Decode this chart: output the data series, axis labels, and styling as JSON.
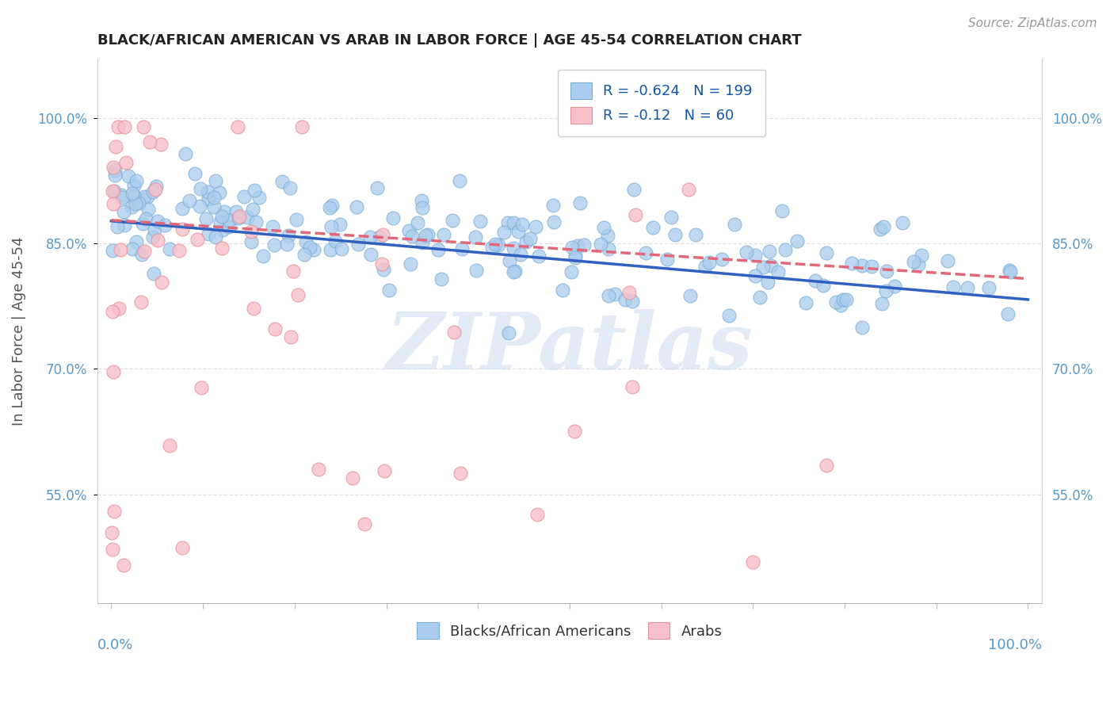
{
  "title": "BLACK/AFRICAN AMERICAN VS ARAB IN LABOR FORCE | AGE 45-54 CORRELATION CHART",
  "source": "Source: ZipAtlas.com",
  "ylabel": "In Labor Force | Age 45-54",
  "xlim": [
    -0.015,
    1.015
  ],
  "ylim": [
    0.42,
    1.07
  ],
  "ytick_values": [
    0.55,
    0.7,
    0.85,
    1.0
  ],
  "ytick_labels": [
    "55.0%",
    "70.0%",
    "85.0%",
    "100.0%"
  ],
  "blue_marker_color": "#aaccee",
  "blue_edge_color": "#7aadd4",
  "pink_marker_color": "#f8c0c8",
  "pink_edge_color": "#e89098",
  "trend_blue_color": "#3060c0",
  "trend_pink_color": "#e06878",
  "watermark_text": "ZIPatlas",
  "watermark_color": "#ccddef",
  "bg_color": "#ffffff",
  "grid_color": "#e0e0e0",
  "title_color": "#222222",
  "axis_tick_color": "#5599cc",
  "blue_label": "Blacks/African Americans",
  "pink_label": "Arabs",
  "R_blue": -0.624,
  "N_blue": 199,
  "R_pink": -0.12,
  "N_pink": 60,
  "blue_trend_y0": 0.877,
  "blue_trend_y1": 0.783,
  "pink_trend_y0": 0.878,
  "pink_trend_y1": 0.808
}
